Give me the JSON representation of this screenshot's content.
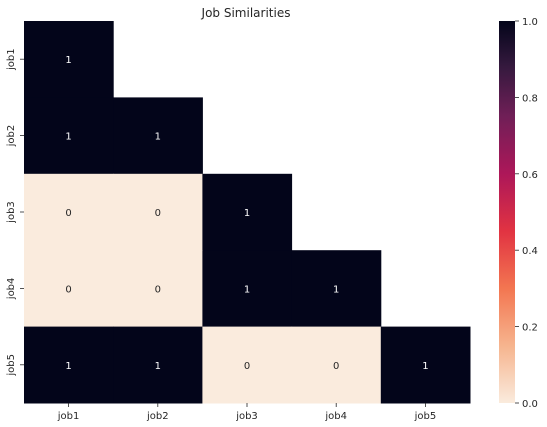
{
  "chart_data": {
    "type": "heatmap",
    "title": "Job Similarities",
    "xlabel": "",
    "ylabel": "",
    "x_categories": [
      "job1",
      "job2",
      "job3",
      "job4",
      "job5"
    ],
    "y_categories": [
      "job1",
      "job2",
      "job3",
      "job4",
      "job5"
    ],
    "mask": "upper-triangle",
    "values": [
      [
        1,
        null,
        null,
        null,
        null
      ],
      [
        1,
        1,
        null,
        null,
        null
      ],
      [
        0,
        0,
        1,
        null,
        null
      ],
      [
        0,
        0,
        1,
        1,
        null
      ],
      [
        1,
        1,
        0,
        0,
        1
      ]
    ],
    "annotations": true,
    "colorbar": {
      "vmin": 0.0,
      "vmax": 1.0,
      "ticks": [
        0.0,
        0.2,
        0.4,
        0.6,
        0.8,
        1.0
      ],
      "tick_labels": [
        "0.0",
        "0.2",
        "0.4",
        "0.6",
        "0.8",
        "1.0"
      ],
      "colormap": "rocket_r",
      "color_low": "#faebdd",
      "color_high": "#03051a"
    }
  }
}
